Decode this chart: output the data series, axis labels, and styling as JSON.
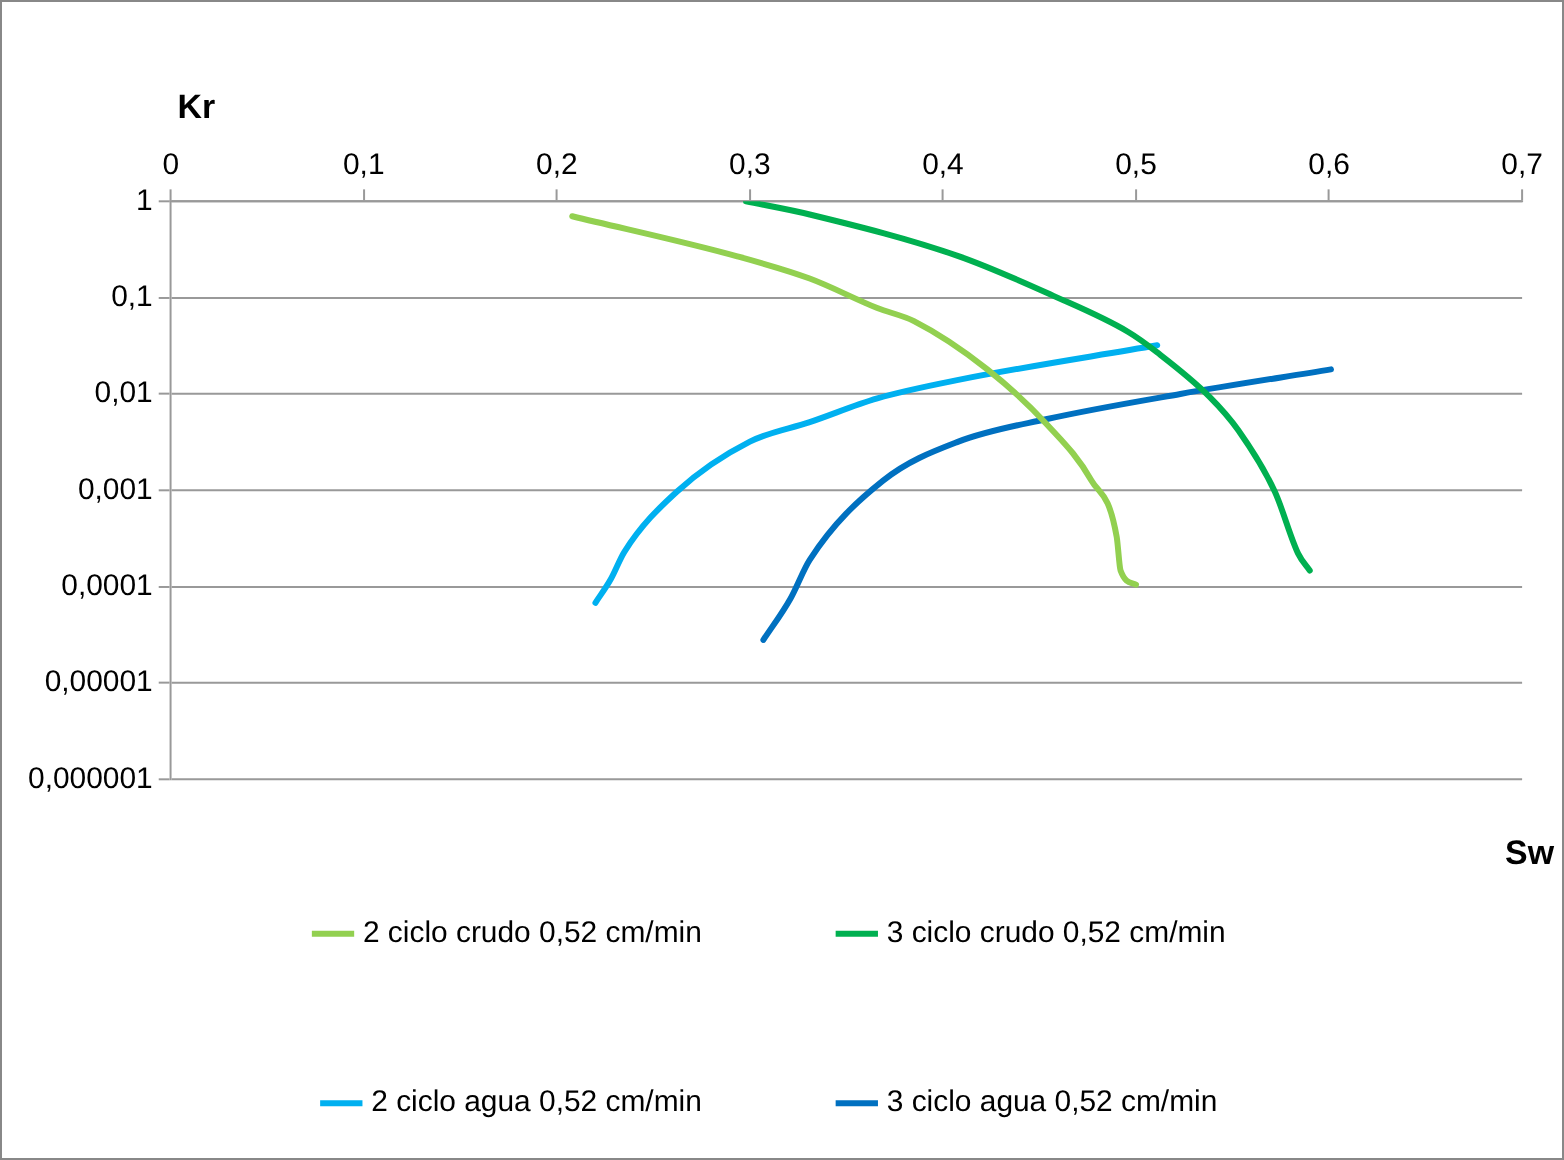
{
  "chart_data": {
    "type": "line",
    "xlabel": "Sw",
    "ylabel": "Kr",
    "log": "y",
    "grid": "y",
    "legend": "bottom",
    "marker": "none",
    "line_style": "solid",
    "xlim": [
      0,
      0.7
    ],
    "xticks": [
      0,
      {
        "value": 0.1,
        "label": "0,1"
      },
      {
        "value": 0.2,
        "label": "0,2"
      },
      {
        "value": 0.3,
        "label": "0,3"
      },
      {
        "value": 0.4,
        "label": "0,4"
      },
      {
        "value": 0.5,
        "label": "0,5"
      },
      {
        "value": 0.6,
        "label": "0,6"
      },
      {
        "value": 0.7,
        "label": "0,7"
      }
    ],
    "ylim": [
      1e-06,
      1
    ],
    "yticks": [
      1,
      {
        "value": 0.1,
        "label": "0,1"
      },
      {
        "value": 0.01,
        "label": "0,01"
      },
      {
        "value": 0.001,
        "label": "0,001"
      },
      {
        "value": 0.0001,
        "label": "0,0001"
      },
      {
        "value": 1e-05,
        "label": "0,00001"
      },
      {
        "value": 1e-06,
        "label": "0,000001"
      }
    ],
    "series": [
      {
        "name": "2 ciclo crudo 0,52 cm/min",
        "color": "#92d050",
        "x": [
          0.208,
          0.293,
          0.331,
          0.366,
          0.385,
          0.423,
          0.454,
          0.477,
          0.49,
          0.492,
          0.5
        ],
        "values": [
          0.7,
          0.27,
          0.158,
          0.078,
          0.057,
          0.018,
          0.0048,
          0.00126,
          0.00033,
          0.000147,
          0.000105
        ]
      },
      {
        "name": "3 ciclo crudo 0,52 cm/min",
        "color": "#00b050",
        "x": [
          0.298,
          0.331,
          0.408,
          0.457,
          0.496,
          0.511,
          0.538,
          0.553,
          0.572,
          0.584,
          0.59
        ],
        "values": [
          1,
          0.73,
          0.27,
          0.105,
          0.044,
          0.027,
          0.0094,
          0.0042,
          0.00096,
          0.00022,
          0.000147
        ]
      },
      {
        "name": "2 ciclo agua 0,52 cm/min",
        "color": "#00b0f0",
        "x": [
          0.22,
          0.228,
          0.235,
          0.262,
          0.3,
          0.331,
          0.366,
          0.408,
          0.511
        ],
        "values": [
          6.8e-05,
          0.00012,
          0.00023,
          0.00096,
          0.0032,
          0.0051,
          0.009,
          0.014,
          0.032
        ]
      },
      {
        "name": "3 ciclo agua 0,52 cm/min",
        "color": "#0070c0",
        "x": [
          0.307,
          0.321,
          0.331,
          0.369,
          0.408,
          0.454,
          0.523,
          0.601
        ],
        "values": [
          2.8e-05,
          7.5e-05,
          0.00019,
          0.00126,
          0.0032,
          0.0055,
          0.01,
          0.018
        ]
      }
    ]
  }
}
